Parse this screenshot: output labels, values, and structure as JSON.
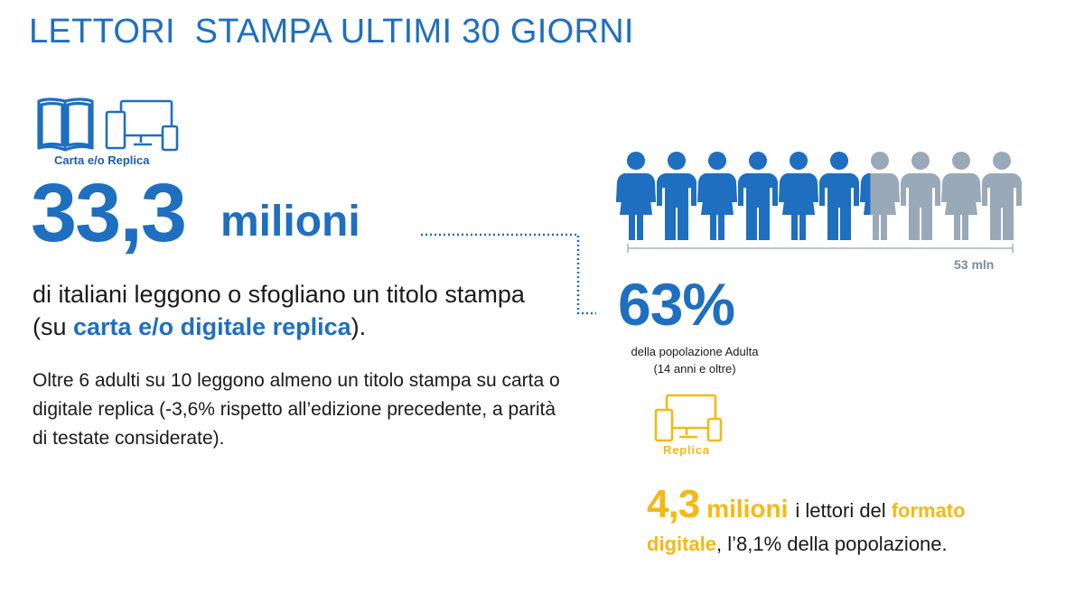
{
  "title": "LETTORI  STAMPA ULTIMI 30 GIORNI",
  "left": {
    "icons": [
      "open-book-icon",
      "devices-icon"
    ],
    "icon_label": "Carta e/o Replica",
    "big_number": "33,3",
    "big_unit": "milioni",
    "para1_a": "di italiani leggono o sfogliano un titolo stampa (su ",
    "para1_highlight": "carta e/o digitale replica",
    "para1_b": ").",
    "para2": "Oltre 6 adulti su 10 leggono almeno un titolo stampa su carta o digitale replica (-3,6% rispetto all’edizione precedente, a parità di testate considerate)."
  },
  "right": {
    "people_total": 10,
    "people_filled_fraction": 0.63,
    "scale_label": "53 mln",
    "percent": "63%",
    "percent_desc1": "della popolazione Adulta",
    "percent_desc2": "(14 anni e oltre)",
    "replica_icon": "devices-icon",
    "replica_label": "Replica",
    "bottom_number": "4,3",
    "bottom_unit": "milioni",
    "bottom_text1": "i lettori del",
    "bottom_highlight1": "formato",
    "bottom_highlight2": "digitale",
    "bottom_text2": ", l’8,1% della popolazione."
  },
  "colors": {
    "blue": "#1f6fc0",
    "grey_person": "#9aa9b8",
    "yellow": "#f5b915",
    "text": "#1a1a1a"
  }
}
